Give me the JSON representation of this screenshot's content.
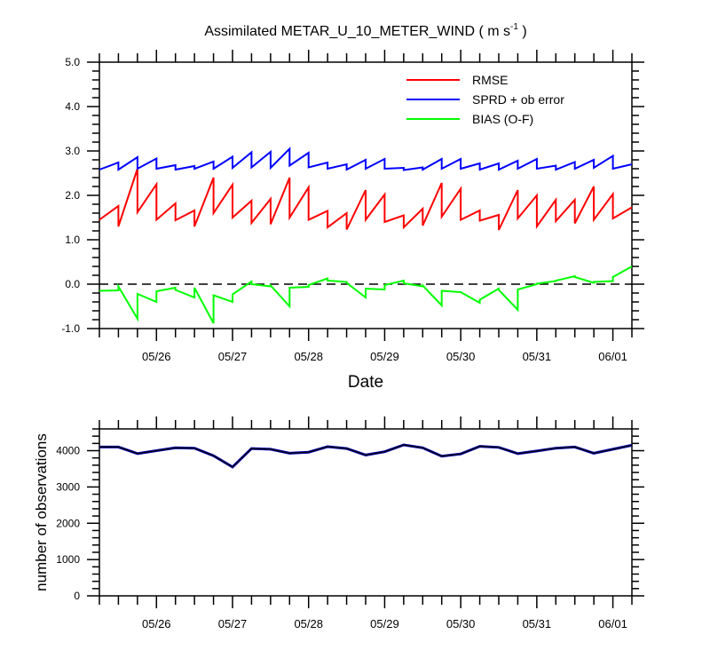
{
  "chart_data": [
    {
      "type": "line",
      "title": "Assimilated METAR_U_10_METER_WIND ( m s",
      "title_superscript": "-1",
      "title_suffix": " )",
      "xlabel": "Date",
      "ylabel": "",
      "ylim": [
        -1.0,
        5.0
      ],
      "yticks": [
        "-1.0",
        "0.0",
        "1.0",
        "2.0",
        "3.0",
        "4.0",
        "5.0"
      ],
      "xlim": [
        25.25,
        32.25
      ],
      "x_unit": "day of May (fractional)",
      "xticks": [
        "05/26",
        "05/27",
        "05/28",
        "05/29",
        "05/30",
        "05/31",
        "06/01"
      ],
      "grid": false,
      "legend_position": "top-right",
      "reference_line": {
        "y": 0.0,
        "style": "dashed"
      },
      "series": [
        {
          "name": "RMSE",
          "color": "#ff0000",
          "points": [
            [
              25.25,
              1.45
            ],
            [
              25.5,
              1.76
            ],
            [
              25.5,
              1.3
            ],
            [
              25.75,
              2.6
            ],
            [
              25.75,
              1.62
            ],
            [
              26.0,
              2.25
            ],
            [
              26.0,
              1.45
            ],
            [
              26.25,
              1.82
            ],
            [
              26.25,
              1.44
            ],
            [
              26.5,
              1.66
            ],
            [
              26.5,
              1.3
            ],
            [
              26.75,
              2.4
            ],
            [
              26.75,
              1.6
            ],
            [
              27.0,
              2.24
            ],
            [
              27.0,
              1.5
            ],
            [
              27.25,
              1.88
            ],
            [
              27.25,
              1.38
            ],
            [
              27.5,
              1.92
            ],
            [
              27.5,
              1.35
            ],
            [
              27.75,
              2.4
            ],
            [
              27.75,
              1.5
            ],
            [
              28.0,
              2.18
            ],
            [
              28.0,
              1.45
            ],
            [
              28.25,
              1.65
            ],
            [
              28.25,
              1.28
            ],
            [
              28.5,
              1.6
            ],
            [
              28.5,
              1.23
            ],
            [
              28.75,
              2.12
            ],
            [
              28.75,
              1.45
            ],
            [
              29.0,
              2.02
            ],
            [
              29.0,
              1.4
            ],
            [
              29.25,
              1.55
            ],
            [
              29.25,
              1.28
            ],
            [
              29.5,
              1.7
            ],
            [
              29.5,
              1.32
            ],
            [
              29.75,
              2.28
            ],
            [
              29.75,
              1.52
            ],
            [
              30.0,
              2.15
            ],
            [
              30.0,
              1.45
            ],
            [
              30.25,
              1.66
            ],
            [
              30.25,
              1.43
            ],
            [
              30.5,
              1.56
            ],
            [
              30.5,
              1.22
            ],
            [
              30.75,
              2.12
            ],
            [
              30.75,
              1.48
            ],
            [
              31.0,
              2.0
            ],
            [
              31.0,
              1.3
            ],
            [
              31.25,
              1.9
            ],
            [
              31.25,
              1.42
            ],
            [
              31.5,
              1.9
            ],
            [
              31.5,
              1.37
            ],
            [
              31.75,
              2.2
            ],
            [
              31.75,
              1.45
            ],
            [
              32.0,
              2.03
            ],
            [
              32.0,
              1.48
            ],
            [
              32.25,
              1.73
            ]
          ]
        },
        {
          "name": "SPRD + ob error",
          "color": "#0000ff",
          "points": [
            [
              25.25,
              2.58
            ],
            [
              25.5,
              2.74
            ],
            [
              25.5,
              2.58
            ],
            [
              25.75,
              2.86
            ],
            [
              25.75,
              2.6
            ],
            [
              26.0,
              2.83
            ],
            [
              26.0,
              2.6
            ],
            [
              26.25,
              2.68
            ],
            [
              26.25,
              2.58
            ],
            [
              26.5,
              2.66
            ],
            [
              26.5,
              2.6
            ],
            [
              26.75,
              2.76
            ],
            [
              26.75,
              2.6
            ],
            [
              27.0,
              2.87
            ],
            [
              27.0,
              2.62
            ],
            [
              27.25,
              2.97
            ],
            [
              27.25,
              2.63
            ],
            [
              27.5,
              2.98
            ],
            [
              27.5,
              2.62
            ],
            [
              27.75,
              3.05
            ],
            [
              27.75,
              2.67
            ],
            [
              28.0,
              2.96
            ],
            [
              28.0,
              2.63
            ],
            [
              28.25,
              2.74
            ],
            [
              28.25,
              2.6
            ],
            [
              28.5,
              2.7
            ],
            [
              28.5,
              2.58
            ],
            [
              28.75,
              2.8
            ],
            [
              28.75,
              2.6
            ],
            [
              29.0,
              2.82
            ],
            [
              29.0,
              2.6
            ],
            [
              29.25,
              2.62
            ],
            [
              29.25,
              2.57
            ],
            [
              29.5,
              2.63
            ],
            [
              29.5,
              2.58
            ],
            [
              29.75,
              2.82
            ],
            [
              29.75,
              2.6
            ],
            [
              30.0,
              2.82
            ],
            [
              30.0,
              2.6
            ],
            [
              30.25,
              2.72
            ],
            [
              30.25,
              2.58
            ],
            [
              30.5,
              2.72
            ],
            [
              30.5,
              2.58
            ],
            [
              30.75,
              2.78
            ],
            [
              30.75,
              2.6
            ],
            [
              31.0,
              2.82
            ],
            [
              31.0,
              2.6
            ],
            [
              31.25,
              2.67
            ],
            [
              31.25,
              2.58
            ],
            [
              31.5,
              2.75
            ],
            [
              31.5,
              2.6
            ],
            [
              31.75,
              2.8
            ],
            [
              31.75,
              2.62
            ],
            [
              32.0,
              2.89
            ],
            [
              32.0,
              2.6
            ],
            [
              32.25,
              2.7
            ]
          ]
        },
        {
          "name": "BIAS (O-F)",
          "color": "#00ff00",
          "points": [
            [
              25.25,
              -0.15
            ],
            [
              25.5,
              -0.14
            ],
            [
              25.5,
              -0.05
            ],
            [
              25.75,
              -0.78
            ],
            [
              25.75,
              -0.22
            ],
            [
              26.0,
              -0.4
            ],
            [
              26.0,
              -0.16
            ],
            [
              26.25,
              -0.08
            ],
            [
              26.25,
              -0.13
            ],
            [
              26.5,
              -0.3
            ],
            [
              26.5,
              -0.08
            ],
            [
              26.75,
              -0.88
            ],
            [
              26.75,
              -0.25
            ],
            [
              27.0,
              -0.4
            ],
            [
              27.0,
              -0.23
            ],
            [
              27.25,
              0.06
            ],
            [
              27.25,
              0.0
            ],
            [
              27.5,
              -0.05
            ],
            [
              27.5,
              -0.03
            ],
            [
              27.75,
              -0.5
            ],
            [
              27.75,
              -0.08
            ],
            [
              28.0,
              -0.06
            ],
            [
              28.0,
              -0.02
            ],
            [
              28.25,
              0.13
            ],
            [
              28.25,
              0.08
            ],
            [
              28.5,
              0.05
            ],
            [
              28.5,
              0.03
            ],
            [
              28.75,
              -0.3
            ],
            [
              28.75,
              -0.1
            ],
            [
              29.0,
              -0.12
            ],
            [
              29.0,
              -0.02
            ],
            [
              29.25,
              0.08
            ],
            [
              29.25,
              0.02
            ],
            [
              29.5,
              -0.05
            ],
            [
              29.5,
              -0.03
            ],
            [
              29.75,
              -0.48
            ],
            [
              29.75,
              -0.15
            ],
            [
              30.0,
              -0.18
            ],
            [
              30.0,
              -0.18
            ],
            [
              30.25,
              -0.42
            ],
            [
              30.25,
              -0.35
            ],
            [
              30.5,
              -0.1
            ],
            [
              30.5,
              -0.13
            ],
            [
              30.75,
              -0.58
            ],
            [
              30.75,
              -0.12
            ],
            [
              31.0,
              0.0
            ],
            [
              31.0,
              0.01
            ],
            [
              31.25,
              0.07
            ],
            [
              31.25,
              0.08
            ],
            [
              31.5,
              0.18
            ],
            [
              31.5,
              0.16
            ],
            [
              31.75,
              0.03
            ],
            [
              31.75,
              0.05
            ],
            [
              32.0,
              0.07
            ],
            [
              32.0,
              0.16
            ],
            [
              32.25,
              0.4
            ]
          ]
        }
      ]
    },
    {
      "type": "line",
      "title": "",
      "xlabel": "",
      "ylabel": "number of observations",
      "ylim": [
        0,
        4600
      ],
      "yticks": [
        "0",
        "1000",
        "2000",
        "3000",
        "4000"
      ],
      "xlim": [
        25.25,
        32.25
      ],
      "x_unit": "day of May (fractional)",
      "xticks": [
        "05/26",
        "05/27",
        "05/28",
        "05/29",
        "05/30",
        "05/31",
        "06/01"
      ],
      "grid": false,
      "series": [
        {
          "color_outer": "#0000aa",
          "color_inner": "#000000",
          "points": [
            [
              25.25,
              4100
            ],
            [
              25.5,
              4100
            ],
            [
              25.75,
              3920
            ],
            [
              26.0,
              4000
            ],
            [
              26.25,
              4080
            ],
            [
              26.5,
              4070
            ],
            [
              26.75,
              3860
            ],
            [
              27.0,
              3550
            ],
            [
              27.25,
              4060
            ],
            [
              27.5,
              4040
            ],
            [
              27.75,
              3930
            ],
            [
              28.0,
              3960
            ],
            [
              28.25,
              4110
            ],
            [
              28.5,
              4060
            ],
            [
              28.75,
              3880
            ],
            [
              29.0,
              3970
            ],
            [
              29.25,
              4160
            ],
            [
              29.5,
              4080
            ],
            [
              29.75,
              3850
            ],
            [
              30.0,
              3910
            ],
            [
              30.25,
              4120
            ],
            [
              30.5,
              4090
            ],
            [
              30.75,
              3920
            ],
            [
              31.0,
              3990
            ],
            [
              31.25,
              4070
            ],
            [
              31.5,
              4100
            ],
            [
              31.75,
              3930
            ],
            [
              32.0,
              4040
            ],
            [
              32.25,
              4150
            ]
          ]
        }
      ]
    }
  ]
}
